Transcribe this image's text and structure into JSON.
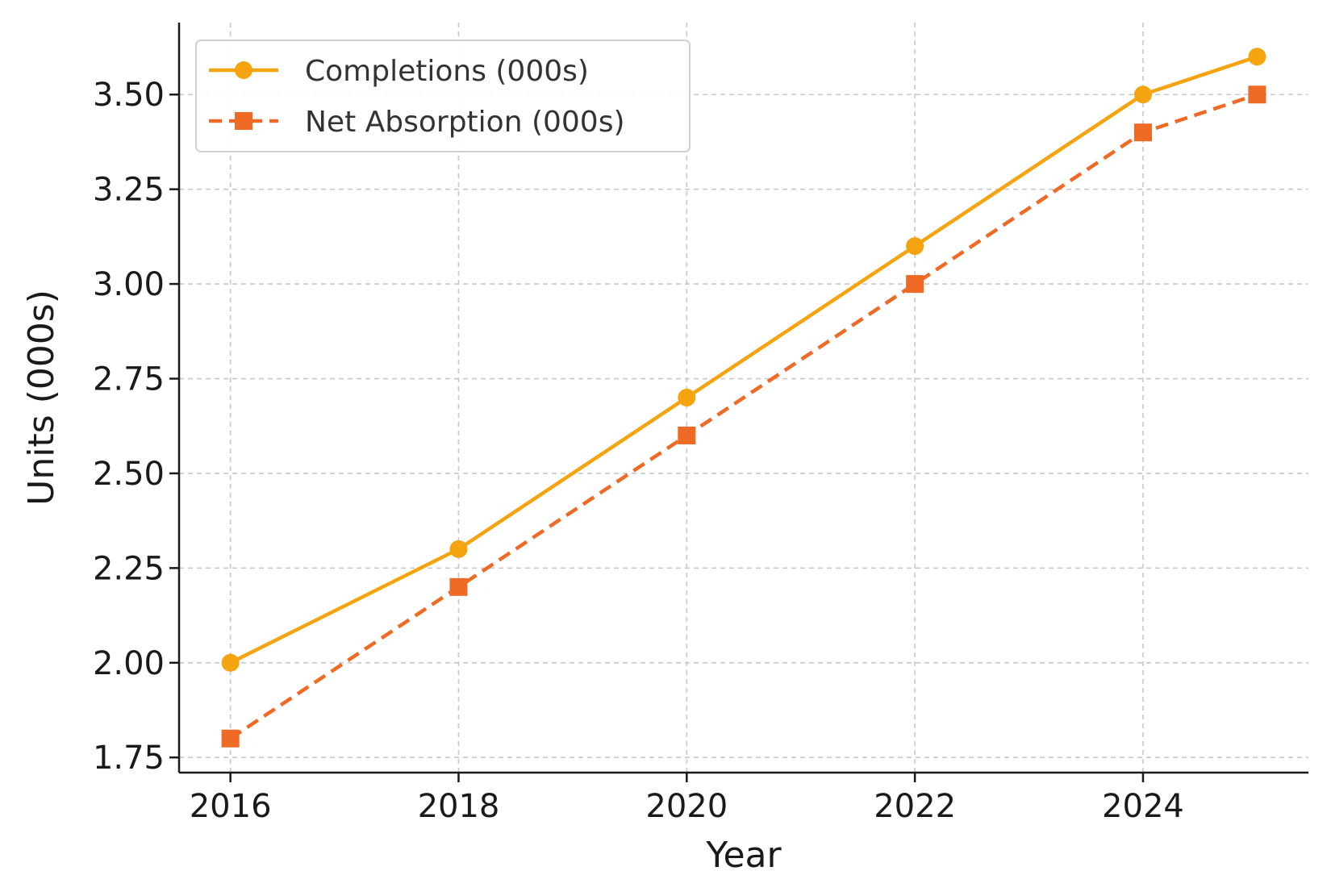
{
  "chart_data": {
    "type": "line",
    "title": "",
    "xlabel": "Year",
    "ylabel": "Units (000s)",
    "x": [
      2016,
      2018,
      2020,
      2022,
      2024,
      2025
    ],
    "xticks": [
      "2016",
      "2018",
      "2020",
      "2022",
      "2024"
    ],
    "yticks": [
      "1.75",
      "2.00",
      "2.25",
      "2.50",
      "2.75",
      "3.00",
      "3.25",
      "3.50"
    ],
    "xlim": [
      2015.55,
      2025.45
    ],
    "ylim": [
      1.71,
      3.69
    ],
    "grid": true,
    "legend_position": "top-left",
    "series": [
      {
        "name": "Completions (000s)",
        "values": [
          2.0,
          2.3,
          2.7,
          3.1,
          3.5,
          3.6
        ],
        "color": "#F5A40F",
        "line_style": "solid",
        "marker": "circle"
      },
      {
        "name": "Net Absorption (000s)",
        "values": [
          1.8,
          2.2,
          2.6,
          3.0,
          3.4,
          3.5
        ],
        "color": "#EE6A25",
        "line_style": "dashed",
        "marker": "square"
      }
    ]
  }
}
